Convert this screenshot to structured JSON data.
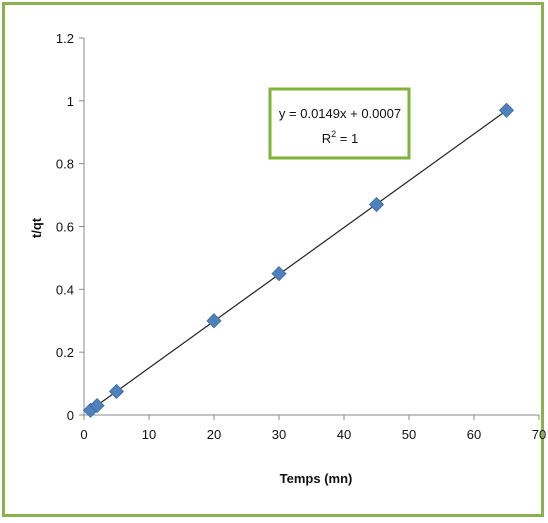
{
  "chart_data": {
    "type": "scatter",
    "title": "",
    "xlabel": "Temps (mn)",
    "ylabel": "t/qt",
    "xlim": [
      0,
      70
    ],
    "ylim": [
      0,
      1.2
    ],
    "x_ticks": [
      "0",
      "10",
      "20",
      "30",
      "40",
      "50",
      "60",
      "70"
    ],
    "y_ticks": [
      "0",
      "0.2",
      "0.4",
      "0.6",
      "0.8",
      "1",
      "1.2"
    ],
    "grid": false,
    "legend": "none",
    "series": [
      {
        "marker": "diamond",
        "color": "#4f81bd",
        "x": [
          1,
          2,
          5,
          20,
          30,
          45,
          65
        ],
        "y": [
          0.015,
          0.03,
          0.075,
          0.3,
          0.45,
          0.67,
          0.97
        ]
      }
    ],
    "trendline": {
      "type": "linear",
      "slope": 0.0149,
      "intercept": 0.0007,
      "color": "#222222"
    },
    "equation_box": {
      "line1": "y = 0.0149x + 0.0007",
      "line2_main": "R",
      "line2_sup": "2",
      "line2_rest": " = 1",
      "border_color": "#7fb33a"
    }
  }
}
